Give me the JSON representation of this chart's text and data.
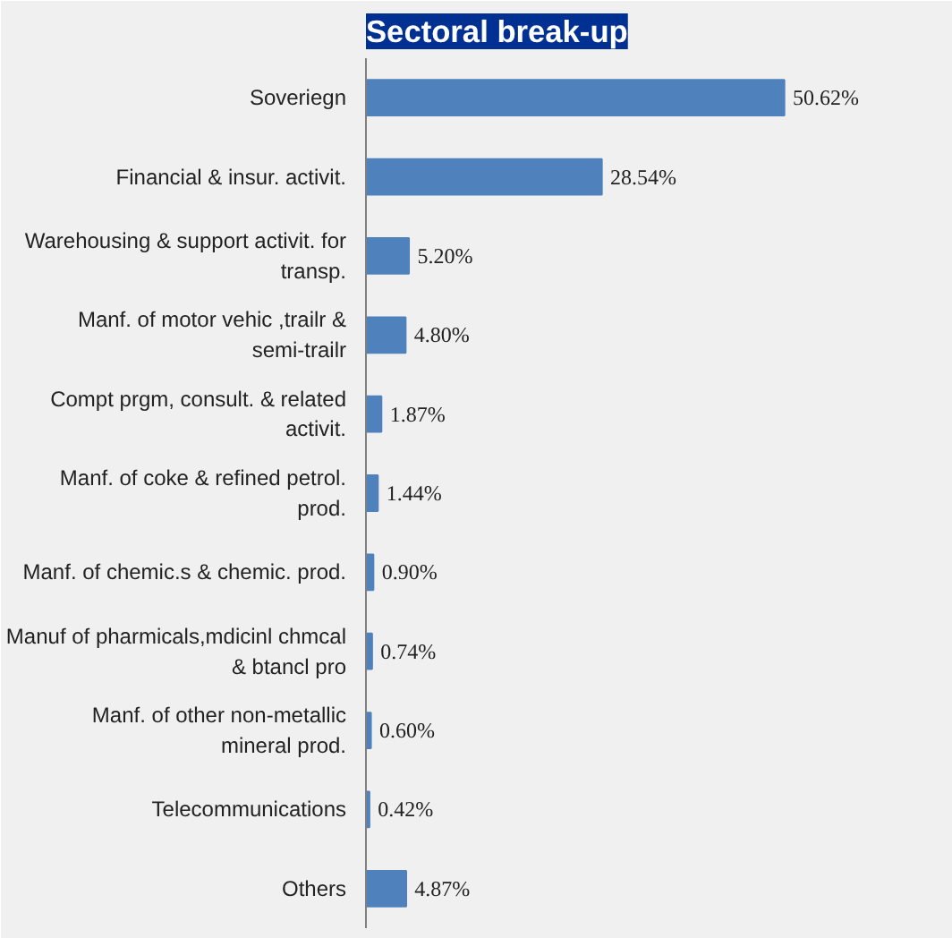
{
  "chart_data": {
    "type": "bar",
    "orientation": "horizontal",
    "title": "Sectoral break-up",
    "categories": [
      "Soveriegn",
      "Financial & insur. activit.",
      "Warehousing & support activit. for transp.",
      "Manf. of motor vehic ,trailr & semi-trailr",
      "Compt prgm, consult. & related activit.",
      "Manf. of coke & refined petrol. prod.",
      "Manf. of chemic.s & chemic. prod.",
      "Manuf of pharmicals,mdicinl chmcal & btancl pro",
      "Manf. of other non-metallic mineral prod.",
      "Telecommunications",
      "Others"
    ],
    "values": [
      50.62,
      28.54,
      5.2,
      4.8,
      1.87,
      1.44,
      0.9,
      0.74,
      0.6,
      0.42,
      4.87
    ],
    "value_labels": [
      "50.62%",
      "28.54%",
      "5.20%",
      "4.80%",
      "1.87%",
      "1.44%",
      "0.90%",
      "0.74%",
      "0.60%",
      "0.42%",
      "4.87%"
    ],
    "color": "#4f81bd"
  }
}
